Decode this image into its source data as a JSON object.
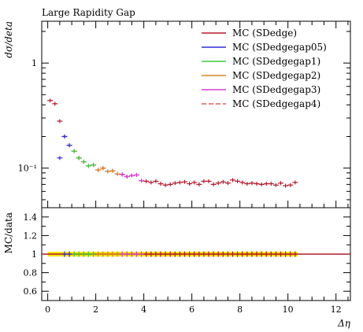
{
  "chart_data": [
    {
      "type": "line",
      "title": "Large Rapidity Gap",
      "ylabel": "dσ/deta",
      "xlabel": "Δη",
      "yscale": "log",
      "xlim": [
        -0.25,
        12.6
      ],
      "ylim": [
        0.042,
        2.5
      ],
      "ytick_labels": [
        {
          "value": 1,
          "label": "1"
        },
        {
          "value": 0.1,
          "label": "10⁻¹"
        }
      ],
      "legend_position": "top-right",
      "series": [
        {
          "name": "MC (SDedge)",
          "color": "#b2182b",
          "dash": "solid",
          "x": [
            0.1,
            0.3,
            0.5,
            0.7,
            0.9,
            1.1,
            1.3,
            1.5,
            1.7,
            1.9,
            2.1,
            2.3,
            2.5,
            2.7,
            2.9,
            3.1,
            3.3,
            3.5,
            3.7,
            3.9,
            4.1,
            4.3,
            4.5,
            4.7,
            4.9,
            5.1,
            5.3,
            5.5,
            5.7,
            5.9,
            6.1,
            6.3,
            6.5,
            6.7,
            6.9,
            7.1,
            7.3,
            7.5,
            7.7,
            7.9,
            8.1,
            8.3,
            8.5,
            8.7,
            8.9,
            9.1,
            9.3,
            9.5,
            9.7,
            9.9,
            10.1,
            10.3
          ],
          "y": [
            0.44,
            0.41,
            0.28,
            0.2,
            0.165,
            0.145,
            0.125,
            0.115,
            0.105,
            0.107,
            0.096,
            0.1,
            0.093,
            0.094,
            0.088,
            0.087,
            0.083,
            0.085,
            0.086,
            0.076,
            0.075,
            0.073,
            0.075,
            0.071,
            0.069,
            0.07,
            0.072,
            0.073,
            0.074,
            0.071,
            0.073,
            0.07,
            0.075,
            0.075,
            0.07,
            0.072,
            0.074,
            0.072,
            0.077,
            0.075,
            0.073,
            0.071,
            0.072,
            0.071,
            0.07,
            0.071,
            0.071,
            0.069,
            0.072,
            0.068,
            0.069,
            0.073
          ]
        },
        {
          "name": "MC (SDedgegap05)",
          "color": "#2b2bd6",
          "dash": "solid",
          "x": [
            0.5,
            0.7,
            0.9
          ],
          "y": [
            0.125,
            0.2,
            0.165
          ]
        },
        {
          "name": "MC (SDedgegap1)",
          "color": "#3fc83f",
          "dash": "solid",
          "x": [
            1.1,
            1.3,
            1.5,
            1.7,
            1.9
          ],
          "y": [
            0.145,
            0.125,
            0.115,
            0.105,
            0.107
          ]
        },
        {
          "name": "MC (SDedgegap2)",
          "color": "#d4872a",
          "dash": "solid",
          "x": [
            2.1,
            2.3,
            2.5,
            2.7,
            2.9
          ],
          "y": [
            0.096,
            0.1,
            0.093,
            0.094,
            0.088
          ]
        },
        {
          "name": "MC (SDedgegap3)",
          "color": "#d63fd6",
          "dash": "solid",
          "x": [
            3.1,
            3.3,
            3.5,
            3.7,
            3.9
          ],
          "y": [
            0.087,
            0.083,
            0.085,
            0.086,
            0.076
          ]
        },
        {
          "name": "MC (SDedgegap4)",
          "color": "#f05a5a",
          "dash": "dashed",
          "x": [],
          "y": []
        }
      ]
    },
    {
      "type": "line",
      "ylabel": "MC/data",
      "xlabel": "Δη",
      "xlim": [
        -0.25,
        12.6
      ],
      "ylim": [
        0.5,
        1.5
      ],
      "yticks": [
        0.6,
        0.8,
        1,
        1.2,
        1.4
      ],
      "ytick_labels": [
        "0.6",
        "0.8",
        "1",
        "1.2",
        "1.4"
      ],
      "xticks": [
        0,
        2,
        4,
        6,
        8,
        10,
        12
      ],
      "xtick_labels": [
        "0",
        "2",
        "4",
        "6",
        "8",
        "10",
        "12"
      ],
      "ratio_line": 1,
      "band_range": [
        0,
        10.4
      ],
      "markers": [
        {
          "x_range": [
            0.6,
            1.0
          ],
          "color": "#2b2bd6"
        },
        {
          "x_range": [
            1.0,
            2.0
          ],
          "color": "#3fc83f"
        },
        {
          "x_range": [
            2.0,
            3.0
          ],
          "color": "#d4872a"
        },
        {
          "x_range": [
            3.0,
            4.0
          ],
          "color": "#d63fd6"
        },
        {
          "x_range": [
            4.0,
            10.4
          ],
          "color": "#b2182b"
        }
      ]
    }
  ]
}
